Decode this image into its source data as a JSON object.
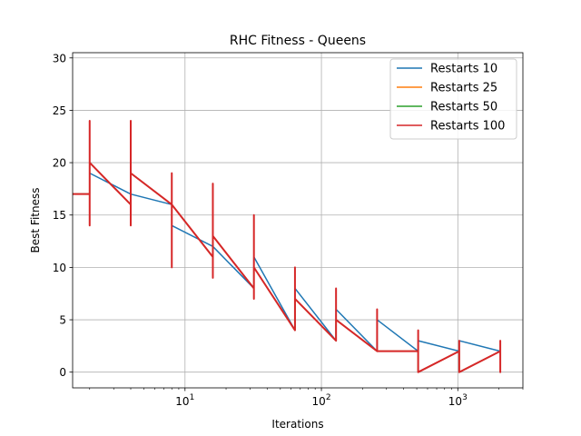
{
  "chart_data": {
    "type": "line",
    "title": "RHC Fitness - Queens",
    "xlabel": "Iterations",
    "ylabel": "Best Fitness",
    "x_scale": "log",
    "xlim": [
      1.5,
      3000
    ],
    "ylim": [
      -1.5,
      30.5
    ],
    "x_ticks": [
      {
        "value": 10,
        "base": "10",
        "exp": "1"
      },
      {
        "value": 100,
        "base": "10",
        "exp": "2"
      },
      {
        "value": 1000,
        "base": "10",
        "exp": "3"
      }
    ],
    "y_ticks": [
      0,
      5,
      10,
      15,
      20,
      25,
      30
    ],
    "grid": true,
    "legend_position": "top-right",
    "series": [
      {
        "name": "Restarts 10",
        "color": "#1f77b4",
        "points": [
          [
            1,
            17
          ],
          [
            2,
            17
          ],
          [
            2,
            19
          ],
          [
            4,
            17
          ],
          [
            8,
            16
          ],
          [
            8,
            14
          ],
          [
            16,
            12
          ],
          [
            32,
            8
          ],
          [
            32,
            11
          ],
          [
            64,
            4
          ],
          [
            64,
            8
          ],
          [
            128,
            3
          ],
          [
            128,
            6
          ],
          [
            256,
            2
          ],
          [
            256,
            5
          ],
          [
            512,
            2
          ],
          [
            512,
            3
          ],
          [
            1024,
            2
          ],
          [
            1024,
            3
          ],
          [
            2048,
            2
          ]
        ]
      },
      {
        "name": "Restarts 25",
        "color": "#ff7f0e",
        "points": [
          [
            1,
            17
          ],
          [
            2,
            17
          ],
          [
            2,
            20
          ],
          [
            4,
            16
          ],
          [
            4,
            19
          ],
          [
            8,
            16
          ],
          [
            16,
            11
          ],
          [
            16,
            13
          ],
          [
            32,
            8
          ],
          [
            32,
            10
          ],
          [
            64,
            4
          ],
          [
            64,
            7
          ],
          [
            128,
            3
          ],
          [
            128,
            5
          ],
          [
            256,
            2
          ],
          [
            512,
            2
          ],
          [
            512,
            0
          ],
          [
            1024,
            2
          ],
          [
            1024,
            0
          ],
          [
            2048,
            2
          ]
        ]
      },
      {
        "name": "Restarts 50",
        "color": "#2ca02c",
        "points": [
          [
            1,
            17
          ],
          [
            2,
            17
          ],
          [
            2,
            20
          ],
          [
            4,
            16
          ],
          [
            4,
            19
          ],
          [
            8,
            16
          ],
          [
            16,
            11
          ],
          [
            16,
            13
          ],
          [
            32,
            8
          ],
          [
            32,
            10
          ],
          [
            64,
            4
          ],
          [
            64,
            7
          ],
          [
            128,
            3
          ],
          [
            128,
            5
          ],
          [
            256,
            2
          ],
          [
            512,
            2
          ],
          [
            512,
            0
          ],
          [
            1024,
            2
          ],
          [
            1024,
            0
          ],
          [
            2048,
            2
          ]
        ]
      },
      {
        "name": "Restarts 100",
        "color": "#d62728",
        "points": [
          [
            1,
            17
          ],
          [
            2,
            17
          ],
          [
            2,
            14
          ],
          [
            2,
            24
          ],
          [
            2,
            20
          ],
          [
            4,
            16
          ],
          [
            4,
            14
          ],
          [
            4,
            24
          ],
          [
            4,
            19
          ],
          [
            8,
            16
          ],
          [
            8,
            10
          ],
          [
            8,
            19
          ],
          [
            8,
            16
          ],
          [
            16,
            11
          ],
          [
            16,
            9
          ],
          [
            16,
            18
          ],
          [
            16,
            13
          ],
          [
            32,
            8
          ],
          [
            32,
            7
          ],
          [
            32,
            15
          ],
          [
            32,
            10
          ],
          [
            64,
            4
          ],
          [
            64,
            10
          ],
          [
            64,
            7
          ],
          [
            128,
            3
          ],
          [
            128,
            8
          ],
          [
            128,
            5
          ],
          [
            256,
            2
          ],
          [
            256,
            6
          ],
          [
            256,
            2
          ],
          [
            512,
            2
          ],
          [
            512,
            4
          ],
          [
            512,
            0
          ],
          [
            1024,
            2
          ],
          [
            1024,
            3
          ],
          [
            1024,
            0
          ],
          [
            2048,
            2
          ],
          [
            2048,
            3
          ],
          [
            2048,
            0
          ],
          [
            2048,
            2
          ]
        ]
      }
    ]
  }
}
